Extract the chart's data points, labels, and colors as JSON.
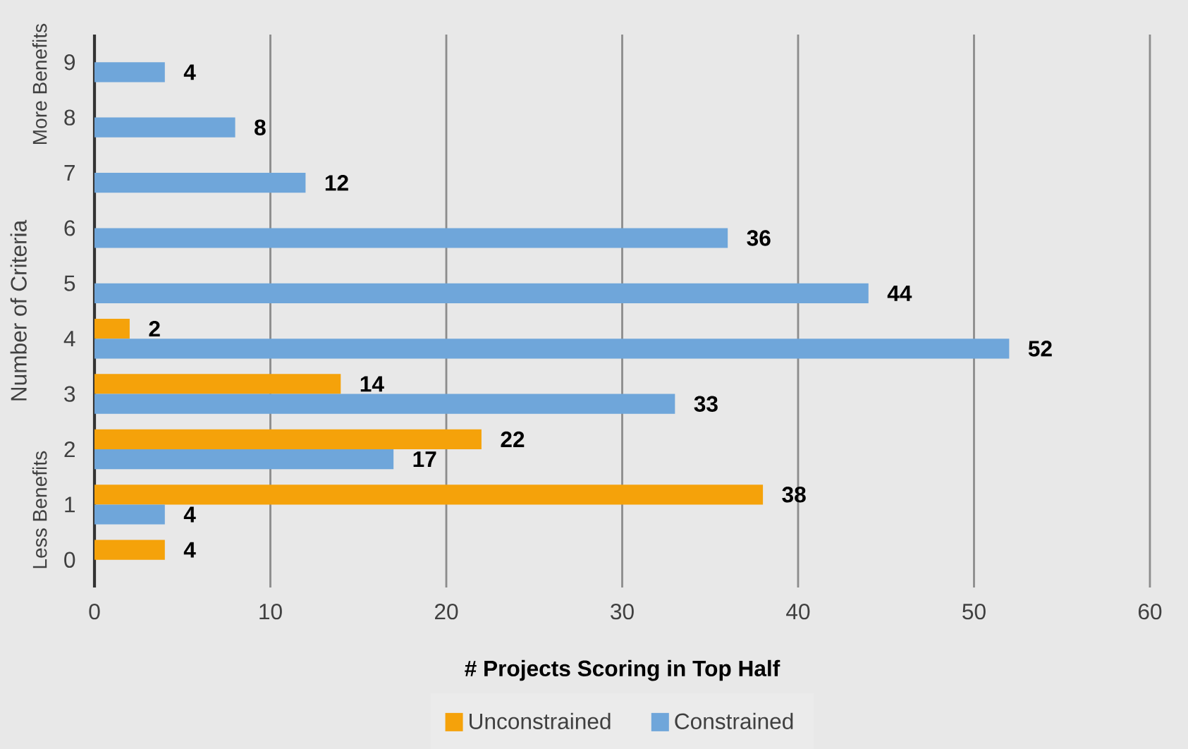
{
  "chart_data": {
    "type": "bar",
    "orientation": "horizontal",
    "xlabel": "# Projects Scoring in Top Half",
    "ylabel": "Number of Criteria",
    "categories": [
      "9",
      "8",
      "7",
      "6",
      "5",
      "4",
      "3",
      "2",
      "1",
      "0"
    ],
    "series": [
      {
        "name": "Unconstrained",
        "color": "#f5a20a",
        "values": [
          null,
          null,
          null,
          null,
          null,
          2,
          14,
          22,
          38,
          4
        ]
      },
      {
        "name": "Constrained",
        "color": "#6fa6da",
        "values": [
          4,
          8,
          12,
          36,
          44,
          52,
          33,
          17,
          4,
          null
        ]
      }
    ],
    "xlim": [
      0,
      60
    ],
    "xticks": [
      0,
      10,
      20,
      30,
      40,
      50,
      60
    ],
    "grid": "x",
    "legend": "bottom",
    "data_labels": true,
    "annotations": [
      "More Benefits",
      "Less Benefits"
    ]
  }
}
